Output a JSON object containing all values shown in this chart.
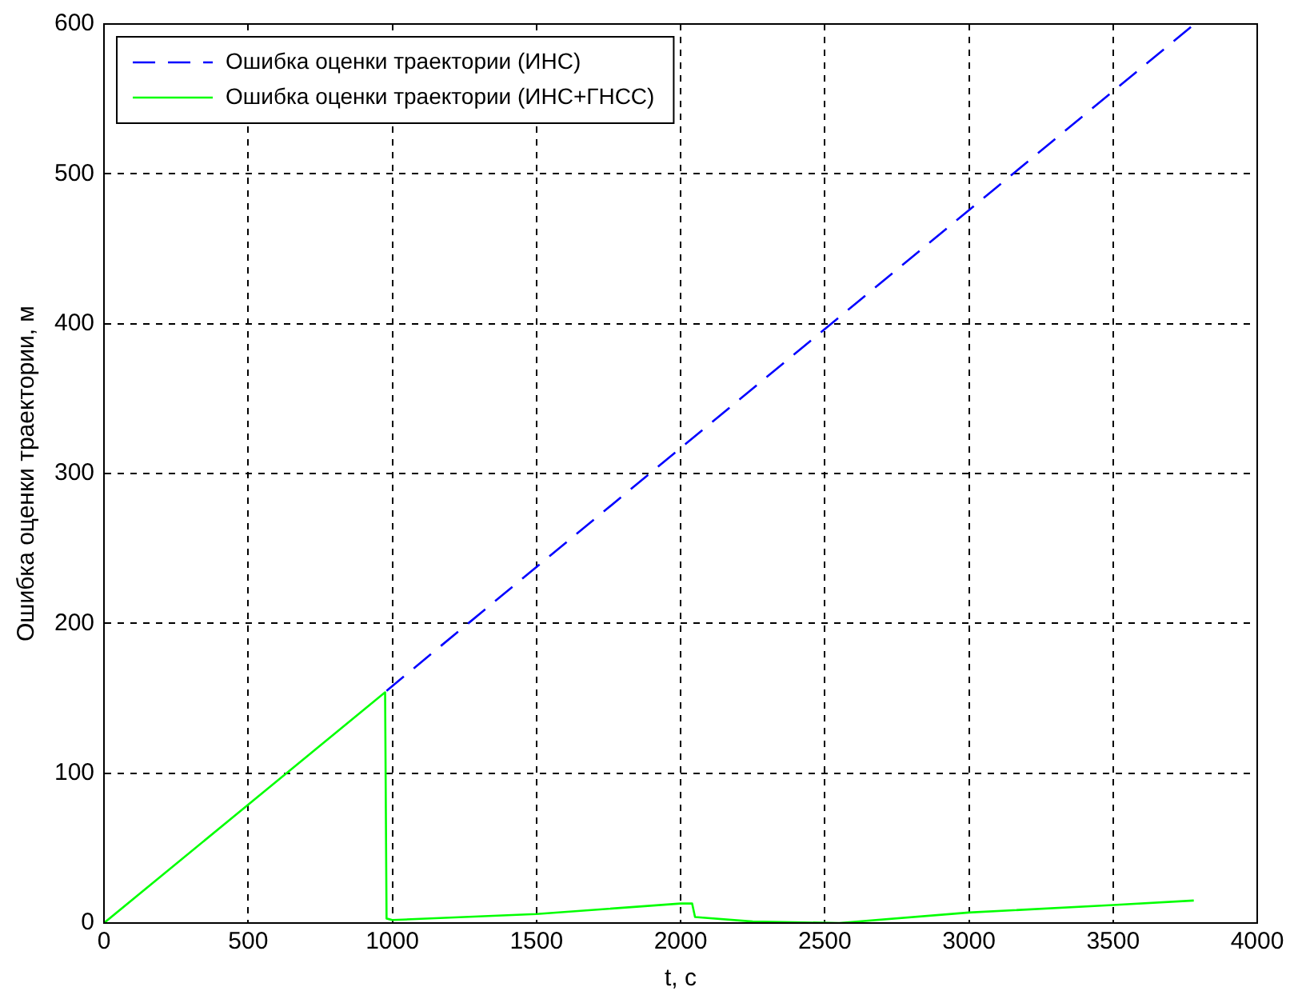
{
  "chart_data": {
    "type": "line",
    "xlabel": "t, c",
    "ylabel": "Ошибка оценки траектории, м",
    "xlim": [
      0,
      4000
    ],
    "xticks": [
      0,
      500,
      1000,
      1500,
      2000,
      2500,
      3000,
      3500,
      4000
    ],
    "ylim": [
      0,
      600
    ],
    "yticks": [
      0,
      100,
      200,
      300,
      400,
      500,
      600
    ],
    "grid": true,
    "legend": "top left",
    "marker": "none",
    "series": [
      {
        "name": "Ошибка оценки траектории (ИНС)",
        "color": "#0000ff",
        "line_style": "dashed",
        "x": [
          980,
          3770
        ],
        "values": [
          155,
          598
        ]
      },
      {
        "name": "Ошибка оценки траектории (ИНС+ГНСС)",
        "color": "#00ff00",
        "line_style": "solid",
        "x": [
          0,
          975,
          980,
          1000,
          1500,
          2000,
          2040,
          2050,
          2250,
          2550,
          3000,
          3500,
          3780
        ],
        "values": [
          0,
          154,
          3,
          2,
          6,
          13,
          13,
          4,
          1,
          0,
          7,
          12,
          15
        ]
      }
    ]
  }
}
